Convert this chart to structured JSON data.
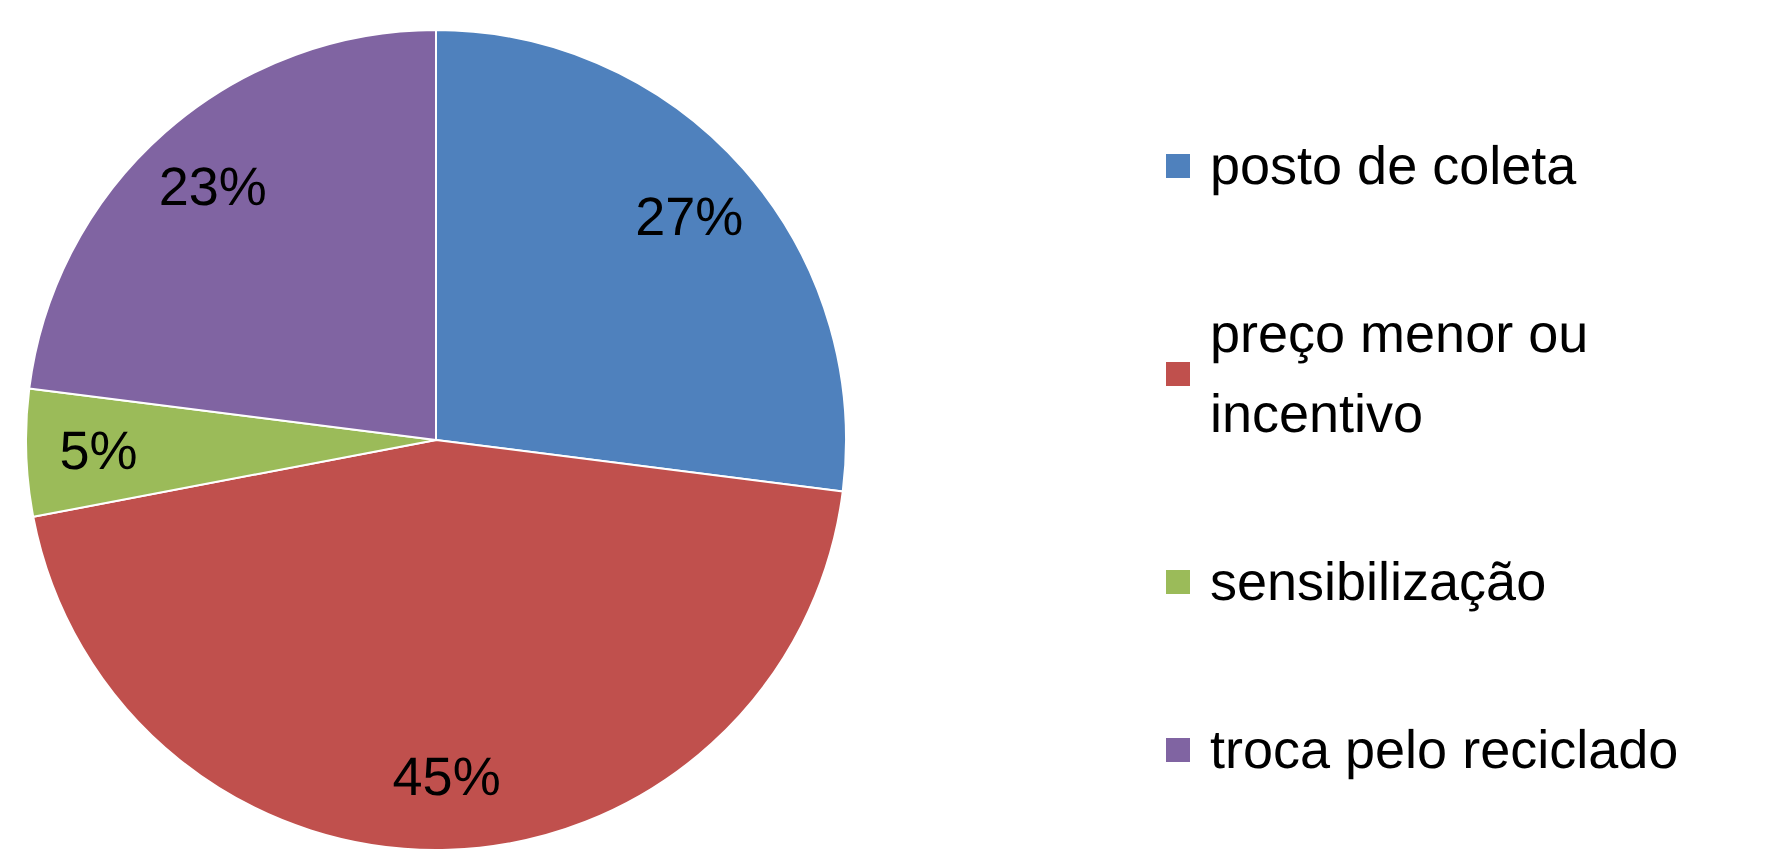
{
  "chart_data": {
    "type": "pie",
    "categories": [
      "posto de coleta",
      "preço menor ou incentivo",
      "sensibilização",
      "troca pelo reciclado"
    ],
    "values": [
      27,
      45,
      5,
      23
    ],
    "value_labels": [
      "27%",
      "45%",
      "5%",
      "23%"
    ],
    "colors": [
      "#4f81bd",
      "#c0504d",
      "#9bbb59",
      "#8064a2"
    ],
    "legend": "right"
  }
}
